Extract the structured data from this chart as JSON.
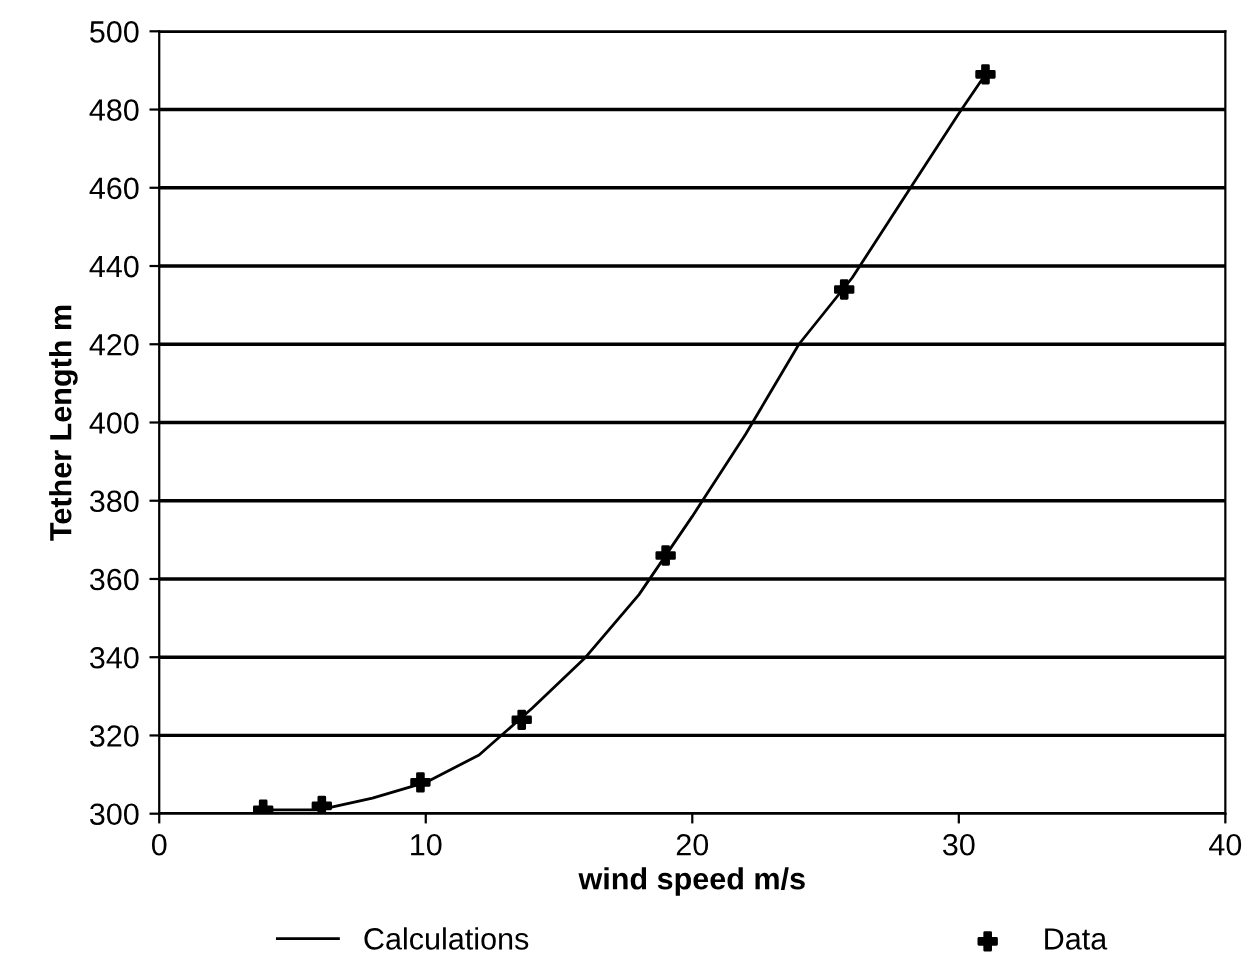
{
  "chart_data": {
    "type": "line",
    "xlabel": "wind speed m/s",
    "ylabel": "Tether Length m",
    "xlim": [
      0,
      40
    ],
    "xticks": [
      0,
      10,
      20,
      30,
      40
    ],
    "ylim": [
      300,
      500
    ],
    "yticks": [
      300,
      320,
      340,
      360,
      380,
      400,
      420,
      440,
      460,
      480,
      500
    ],
    "grid": "y",
    "legend": "bottom",
    "series": [
      {
        "name": "Calculations",
        "color": "#000000",
        "line_style": "solid",
        "marker": "none",
        "x": [
          4,
          6,
          8,
          10,
          12,
          14,
          16,
          18,
          20,
          22,
          24,
          26,
          28,
          30,
          31
        ],
        "values": [
          301,
          301,
          304,
          308,
          315,
          327,
          340,
          356,
          376,
          397,
          420,
          437,
          458,
          479,
          489
        ]
      },
      {
        "name": "Data",
        "type": "scatter",
        "color": "#000000",
        "marker": "cross",
        "x": [
          3.9,
          6.1,
          9.8,
          13.6,
          19.0,
          25.7,
          31.0
        ],
        "values": [
          301,
          302,
          308,
          324,
          366,
          434,
          489
        ]
      }
    ]
  }
}
